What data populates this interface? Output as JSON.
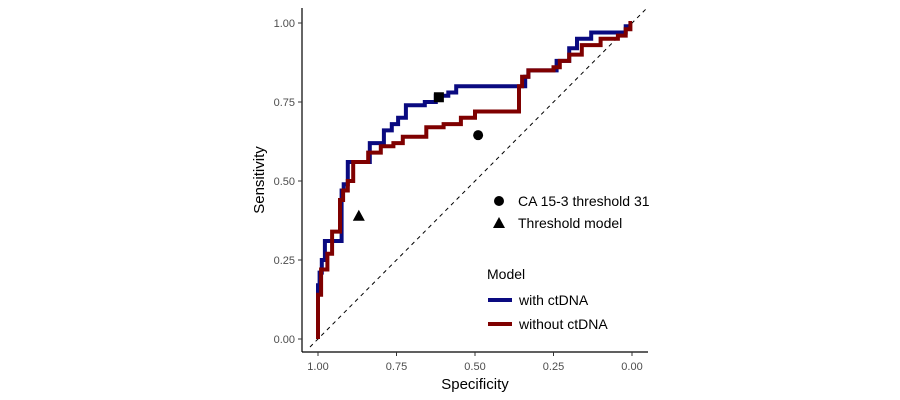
{
  "chart_data": {
    "type": "line",
    "title": "",
    "xlabel": "Specificity",
    "ylabel": "Sensitivity",
    "x_reversed": true,
    "xlim": [
      1.0,
      0.0
    ],
    "ylim": [
      0.0,
      1.0
    ],
    "xticks": [
      "1.00",
      "0.75",
      "0.50",
      "0.25",
      "0.00"
    ],
    "xtick_values": [
      1.0,
      0.75,
      0.5,
      0.25,
      0.0
    ],
    "yticks": [
      "0.00",
      "0.25",
      "0.50",
      "0.75",
      "1.00"
    ],
    "ytick_values": [
      0.0,
      0.25,
      0.5,
      0.75,
      1.0
    ],
    "grid": false,
    "reference_line": {
      "style": "dashed",
      "from": [
        1.0,
        0.0
      ],
      "to": [
        0.0,
        1.0
      ]
    },
    "legend_title": "Model",
    "legend_position": "right",
    "series": [
      {
        "name": "with ctDNA",
        "color": "#0a0a80",
        "x": [
          1.0,
          1.0,
          0.995,
          0.995,
          0.988,
          0.988,
          0.978,
          0.978,
          0.955,
          0.955,
          0.925,
          0.925,
          0.918,
          0.918,
          0.905,
          0.905,
          0.878,
          0.878,
          0.835,
          0.835,
          0.81,
          0.81,
          0.79,
          0.79,
          0.765,
          0.765,
          0.745,
          0.745,
          0.72,
          0.72,
          0.705,
          0.705,
          0.66,
          0.66,
          0.64,
          0.64,
          0.625,
          0.625,
          0.605,
          0.605,
          0.585,
          0.585,
          0.56,
          0.56,
          0.545,
          0.545,
          0.52,
          0.52,
          0.36,
          0.36,
          0.34,
          0.34,
          0.33,
          0.33,
          0.31,
          0.31,
          0.24,
          0.24,
          0.2,
          0.2,
          0.175,
          0.175,
          0.13,
          0.13,
          0.09,
          0.09,
          0.04,
          0.04,
          0.02,
          0.02,
          0.0
        ],
        "y": [
          0.0,
          0.17,
          0.17,
          0.21,
          0.21,
          0.25,
          0.25,
          0.31,
          0.31,
          0.31,
          0.31,
          0.47,
          0.47,
          0.49,
          0.49,
          0.56,
          0.56,
          0.56,
          0.56,
          0.62,
          0.62,
          0.62,
          0.62,
          0.66,
          0.66,
          0.68,
          0.68,
          0.7,
          0.7,
          0.74,
          0.74,
          0.74,
          0.74,
          0.75,
          0.75,
          0.75,
          0.75,
          0.77,
          0.77,
          0.77,
          0.77,
          0.78,
          0.78,
          0.8,
          0.8,
          0.8,
          0.8,
          0.8,
          0.8,
          0.8,
          0.8,
          0.83,
          0.83,
          0.85,
          0.85,
          0.85,
          0.85,
          0.88,
          0.88,
          0.92,
          0.92,
          0.95,
          0.95,
          0.97,
          0.97,
          0.97,
          0.97,
          0.97,
          0.97,
          0.99,
          0.99
        ]
      },
      {
        "name": "without ctDNA",
        "color": "#7f0000",
        "x": [
          1.0,
          1.0,
          0.99,
          0.99,
          0.97,
          0.97,
          0.955,
          0.955,
          0.93,
          0.93,
          0.92,
          0.92,
          0.905,
          0.905,
          0.888,
          0.888,
          0.84,
          0.84,
          0.8,
          0.8,
          0.76,
          0.76,
          0.73,
          0.73,
          0.655,
          0.655,
          0.6,
          0.6,
          0.545,
          0.545,
          0.5,
          0.5,
          0.44,
          0.44,
          0.36,
          0.36,
          0.35,
          0.35,
          0.33,
          0.33,
          0.25,
          0.25,
          0.23,
          0.23,
          0.2,
          0.2,
          0.16,
          0.16,
          0.1,
          0.1,
          0.045,
          0.045,
          0.02,
          0.02,
          0.005,
          0.005,
          0.0
        ],
        "y": [
          0.0,
          0.14,
          0.14,
          0.22,
          0.22,
          0.27,
          0.27,
          0.34,
          0.34,
          0.44,
          0.44,
          0.47,
          0.47,
          0.5,
          0.5,
          0.56,
          0.56,
          0.59,
          0.59,
          0.61,
          0.61,
          0.62,
          0.62,
          0.64,
          0.64,
          0.67,
          0.67,
          0.68,
          0.68,
          0.7,
          0.7,
          0.72,
          0.72,
          0.72,
          0.72,
          0.8,
          0.8,
          0.83,
          0.83,
          0.85,
          0.85,
          0.86,
          0.86,
          0.88,
          0.88,
          0.9,
          0.9,
          0.93,
          0.93,
          0.95,
          0.95,
          0.96,
          0.96,
          0.98,
          0.98,
          1.0,
          1.0
        ]
      }
    ],
    "points": [
      {
        "name": "CA 15-3 threshold 31",
        "shape": "circle",
        "x": 0.49,
        "y": 0.645,
        "show_in_legend": true
      },
      {
        "name": "Threshold model",
        "shape": "triangle",
        "x": 0.87,
        "y": 0.39,
        "show_in_legend": true
      },
      {
        "name": "",
        "shape": "square",
        "x": 0.615,
        "y": 0.765,
        "show_in_legend": false
      }
    ]
  }
}
